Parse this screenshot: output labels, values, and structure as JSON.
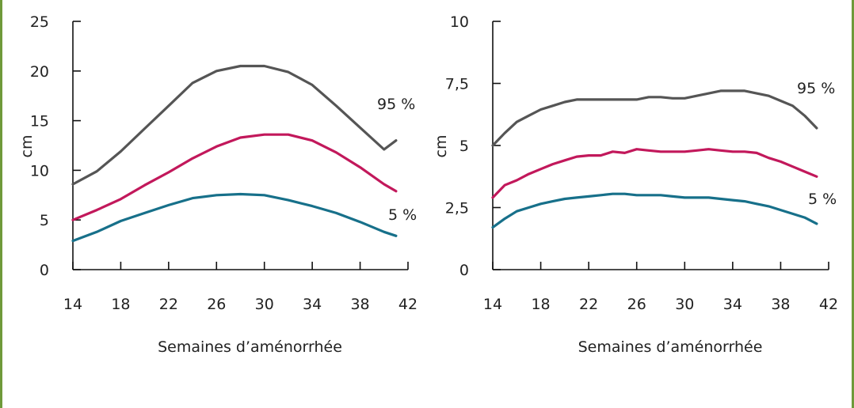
{
  "chart_data": [
    {
      "type": "line",
      "xlabel": "Semaines d’aménorrhée",
      "ylabel": "cm",
      "xlim": [
        14,
        42
      ],
      "ylim": [
        0,
        25
      ],
      "x_ticks": [
        "14",
        "18",
        "22",
        "26",
        "30",
        "34",
        "38",
        "42"
      ],
      "y_ticks": [
        "0",
        "5",
        "10",
        "15",
        "20",
        "25"
      ],
      "colors": {
        "p95": "#555555",
        "p50": "#c2185b",
        "p5": "#17708a"
      },
      "series": [
        {
          "name": "95 %",
          "key": "p95",
          "x": [
            14,
            16,
            18,
            20,
            22,
            24,
            26,
            28,
            30,
            32,
            34,
            36,
            38,
            40,
            41
          ],
          "values": [
            8.6,
            9.9,
            11.9,
            14.2,
            16.5,
            18.8,
            20.0,
            20.5,
            20.5,
            19.9,
            18.6,
            16.5,
            14.3,
            12.1,
            13.0
          ]
        },
        {
          "name": "",
          "key": "p50",
          "x": [
            14,
            16,
            18,
            20,
            22,
            24,
            26,
            28,
            30,
            32,
            34,
            36,
            38,
            40,
            41
          ],
          "values": [
            5.0,
            6.0,
            7.1,
            8.5,
            9.8,
            11.2,
            12.4,
            13.3,
            13.6,
            13.6,
            13.0,
            11.8,
            10.3,
            8.6,
            7.9
          ]
        },
        {
          "name": "5 %",
          "key": "p5",
          "x": [
            14,
            16,
            18,
            20,
            22,
            24,
            26,
            28,
            30,
            32,
            34,
            36,
            38,
            40,
            41
          ],
          "values": [
            2.9,
            3.8,
            4.9,
            5.7,
            6.5,
            7.2,
            7.5,
            7.6,
            7.5,
            7.0,
            6.4,
            5.7,
            4.8,
            3.8,
            3.4
          ]
        }
      ]
    },
    {
      "type": "line",
      "xlabel": "Semaines d’aménorrhée",
      "ylabel": "cm",
      "xlim": [
        14,
        42
      ],
      "ylim": [
        0,
        10
      ],
      "x_ticks": [
        "14",
        "18",
        "22",
        "26",
        "30",
        "34",
        "38",
        "42"
      ],
      "y_ticks": [
        "0",
        "2,5",
        "5",
        "7,5",
        "10"
      ],
      "colors": {
        "p95": "#555555",
        "p50": "#c2185b",
        "p5": "#17708a"
      },
      "series": [
        {
          "name": "95 %",
          "key": "p95",
          "x": [
            14,
            15,
            16,
            17,
            18,
            19,
            20,
            21,
            22,
            23,
            24,
            25,
            26,
            27,
            28,
            29,
            30,
            31,
            32,
            33,
            34,
            35,
            36,
            37,
            38,
            39,
            40,
            41
          ],
          "values": [
            5.0,
            5.5,
            5.95,
            6.2,
            6.45,
            6.6,
            6.75,
            6.85,
            6.85,
            6.85,
            6.85,
            6.85,
            6.85,
            6.95,
            6.95,
            6.9,
            6.9,
            7.0,
            7.1,
            7.2,
            7.2,
            7.2,
            7.1,
            7.0,
            6.8,
            6.6,
            6.2,
            5.7
          ]
        },
        {
          "name": "",
          "key": "p50",
          "x": [
            14,
            15,
            16,
            17,
            18,
            19,
            20,
            21,
            22,
            23,
            24,
            25,
            26,
            27,
            28,
            29,
            30,
            31,
            32,
            33,
            34,
            35,
            36,
            37,
            38,
            39,
            40,
            41
          ],
          "values": [
            2.9,
            3.4,
            3.6,
            3.85,
            4.05,
            4.25,
            4.4,
            4.55,
            4.6,
            4.6,
            4.75,
            4.7,
            4.85,
            4.8,
            4.75,
            4.75,
            4.75,
            4.8,
            4.85,
            4.8,
            4.75,
            4.75,
            4.7,
            4.5,
            4.35,
            4.15,
            3.95,
            3.75
          ]
        },
        {
          "name": "5 %",
          "key": "p5",
          "x": [
            14,
            15,
            16,
            17,
            18,
            19,
            20,
            21,
            22,
            23,
            24,
            25,
            26,
            27,
            28,
            29,
            30,
            31,
            32,
            33,
            34,
            35,
            36,
            37,
            38,
            39,
            40,
            41
          ],
          "values": [
            1.7,
            2.05,
            2.35,
            2.5,
            2.65,
            2.75,
            2.85,
            2.9,
            2.95,
            3.0,
            3.05,
            3.05,
            3.0,
            3.0,
            3.0,
            2.95,
            2.9,
            2.9,
            2.9,
            2.85,
            2.8,
            2.75,
            2.65,
            2.55,
            2.4,
            2.25,
            2.1,
            1.85
          ]
        }
      ]
    }
  ]
}
